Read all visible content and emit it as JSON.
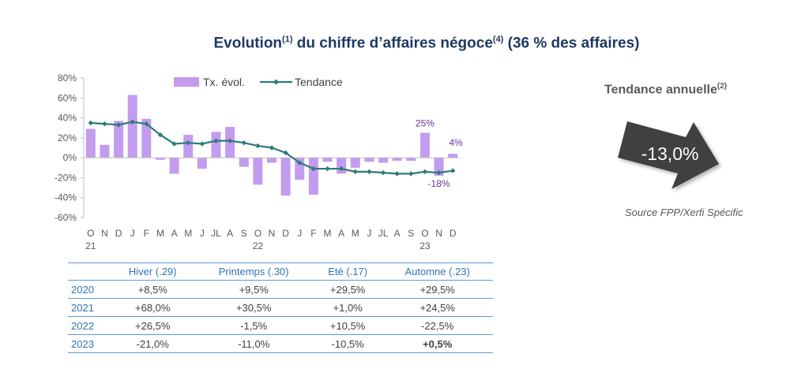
{
  "title": {
    "main": "Evolution",
    "sup1": "(1)",
    "middle": " du chiffre d’affaires négoce",
    "sup2": "(4)",
    "end": " (36 % des affaires)"
  },
  "chart_data": {
    "type": "bar",
    "title": "Evolution du chiffre d’affaires négoce (36 % des affaires)",
    "categories": [
      "O",
      "N",
      "D",
      "J",
      "F",
      "M",
      "A",
      "M",
      "J",
      "JL",
      "A",
      "S",
      "O",
      "N",
      "D",
      "J",
      "F",
      "M",
      "A",
      "M",
      "J",
      "JL",
      "A",
      "S",
      "O",
      "N",
      "D"
    ],
    "year_labels": [
      {
        "index": 0,
        "label": "21"
      },
      {
        "index": 12,
        "label": "22"
      },
      {
        "index": 24,
        "label": "23"
      }
    ],
    "ylim": [
      -60,
      80
    ],
    "yticks": [
      -60,
      -40,
      -20,
      0,
      20,
      40,
      60,
      80
    ],
    "ytick_labels": [
      "-60%",
      "-40%",
      "-20%",
      "0%",
      "20%",
      "40%",
      "60%",
      "80%"
    ],
    "series": [
      {
        "name": "Tx. évol.",
        "kind": "bar",
        "color": "#c39bef",
        "values": [
          29,
          13,
          37,
          63,
          39,
          -2,
          -16,
          23,
          -11,
          26,
          31,
          -9,
          -27,
          -5,
          -38,
          -22,
          -37,
          -4,
          -16,
          -10,
          -4,
          -5,
          -3,
          -3,
          25,
          -18,
          4
        ]
      },
      {
        "name": "Tendance",
        "kind": "line",
        "color": "#2e7b78",
        "values": [
          35,
          34,
          33,
          36,
          34,
          23,
          14,
          15,
          14,
          17,
          17,
          15,
          12,
          10,
          5,
          -5,
          -11,
          -11,
          -11,
          -14,
          -14,
          -15,
          -16,
          -16,
          -14,
          -15,
          -13
        ]
      }
    ],
    "annotations": [
      {
        "index": 24,
        "series": "Tx. évol.",
        "text": "25%"
      },
      {
        "index": 25,
        "series": "Tx. évol.",
        "text": "-18%"
      },
      {
        "index": 26,
        "series": "Tx. évol.",
        "text": "4%"
      }
    ],
    "legend": {
      "position": "top"
    }
  },
  "side": {
    "trend_title": "Tendance annuelle",
    "trend_sup": "(2)",
    "trend_value": "-13,0%",
    "source": "Source FPP/Xerfi Spécific",
    "arrow_color": "#404040"
  },
  "table": {
    "headers": [
      "",
      "Hiver (.29)",
      "Printemps (.30)",
      "Eté (.17)",
      "Automne (.23)"
    ],
    "rows": [
      {
        "year": "2020",
        "values": [
          "+8,5%",
          "+9,5%",
          "+29,5%",
          "+29,5%"
        ]
      },
      {
        "year": "2021",
        "values": [
          "+68,0%",
          "+30,5%",
          "+1,0%",
          "+24,5%"
        ]
      },
      {
        "year": "2022",
        "values": [
          "+26,5%",
          "-1,5%",
          "+10,5%",
          "-22,5%"
        ]
      },
      {
        "year": "2023",
        "values": [
          "-21,0%",
          "-11,0%",
          "-10,5%",
          "+0,5%"
        ]
      }
    ]
  }
}
